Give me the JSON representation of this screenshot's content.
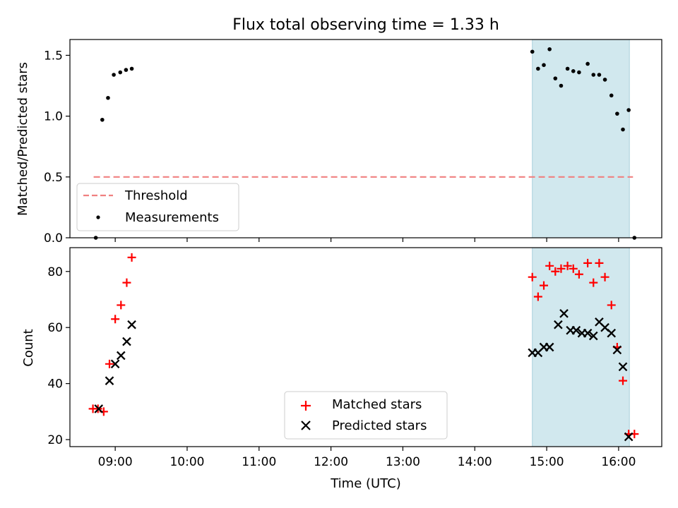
{
  "chart_data": [
    {
      "type": "scatter",
      "title": "Flux total observing time = 1.33 h",
      "xlabel": "",
      "ylabel": "Matched/Predicted stars",
      "xlim": [
        8.37,
        16.6
      ],
      "ylim": [
        0.0,
        1.63
      ],
      "yticks": [
        0.0,
        0.5,
        1.0,
        1.5
      ],
      "ytick_labels": [
        "0.0",
        "0.5",
        "1.0",
        "1.5"
      ],
      "xticks": [
        9,
        10,
        11,
        12,
        13,
        14,
        15,
        16
      ],
      "show_xtick_labels": false,
      "shaded_region": {
        "x_start": 14.8,
        "x_end": 16.15,
        "color": "#d1e8ee"
      },
      "threshold": {
        "label": "Threshold",
        "y": 0.5,
        "x_start": 8.7,
        "x_end": 16.2,
        "color": "#f08080",
        "style": "dashed"
      },
      "series": [
        {
          "name": "Measurements",
          "marker": "dot",
          "color": "#000000",
          "x": [
            8.73,
            8.82,
            8.9,
            8.98,
            9.07,
            9.15,
            9.23,
            14.8,
            14.88,
            14.96,
            15.04,
            15.12,
            15.2,
            15.29,
            15.37,
            15.45,
            15.57,
            15.65,
            15.73,
            15.81,
            15.9,
            15.98,
            16.06,
            16.14,
            16.22
          ],
          "y": [
            0.0,
            0.97,
            1.15,
            1.34,
            1.36,
            1.38,
            1.39,
            1.53,
            1.39,
            1.42,
            1.55,
            1.31,
            1.25,
            1.39,
            1.37,
            1.36,
            1.43,
            1.34,
            1.34,
            1.3,
            1.17,
            1.02,
            0.89,
            1.05,
            0.0
          ]
        }
      ],
      "legend": {
        "placement": "lower-left",
        "entries": [
          "Threshold",
          "Measurements"
        ]
      }
    },
    {
      "type": "scatter",
      "title": "",
      "xlabel": "Time (UTC)",
      "ylabel": "Count",
      "xlim": [
        8.37,
        16.6
      ],
      "ylim": [
        17.5,
        88.5
      ],
      "yticks": [
        20,
        40,
        60,
        80
      ],
      "ytick_labels": [
        "20",
        "40",
        "60",
        "80"
      ],
      "xticks": [
        9,
        10,
        11,
        12,
        13,
        14,
        15,
        16
      ],
      "xtick_labels": [
        "09:00",
        "10:00",
        "11:00",
        "12:00",
        "13:00",
        "14:00",
        "15:00",
        "16:00"
      ],
      "shaded_region": {
        "x_start": 14.8,
        "x_end": 16.15,
        "color": "#d1e8ee"
      },
      "series": [
        {
          "name": "Matched stars",
          "marker": "plus",
          "color": "#ff0000",
          "x": [
            8.69,
            8.76,
            8.84,
            8.92,
            9.0,
            9.08,
            9.16,
            9.23,
            14.8,
            14.88,
            14.96,
            15.04,
            15.12,
            15.2,
            15.29,
            15.37,
            15.45,
            15.57,
            15.65,
            15.73,
            15.81,
            15.9,
            15.98,
            16.06,
            16.14,
            16.22
          ],
          "y": [
            31,
            31,
            30,
            47,
            63,
            68,
            76,
            85,
            78,
            71,
            75,
            82,
            80,
            81,
            82,
            81,
            79,
            83,
            76,
            83,
            78,
            68,
            53,
            41,
            22,
            22
          ]
        },
        {
          "name": "Predicted stars",
          "marker": "x",
          "color": "#000000",
          "x": [
            8.77,
            8.92,
            9.0,
            9.08,
            9.16,
            9.23,
            14.8,
            14.88,
            14.96,
            15.04,
            15.16,
            15.24,
            15.33,
            15.41,
            15.49,
            15.57,
            15.65,
            15.73,
            15.81,
            15.9,
            15.98,
            16.06,
            16.14
          ],
          "y": [
            31,
            41,
            47,
            50,
            55,
            61,
            51,
            51,
            53,
            53,
            61,
            65,
            59,
            59,
            58,
            58,
            57,
            62,
            60,
            58,
            52,
            46,
            21
          ]
        }
      ],
      "legend": {
        "placement": "lower-center",
        "entries": [
          "Matched stars",
          "Predicted stars"
        ]
      }
    }
  ]
}
